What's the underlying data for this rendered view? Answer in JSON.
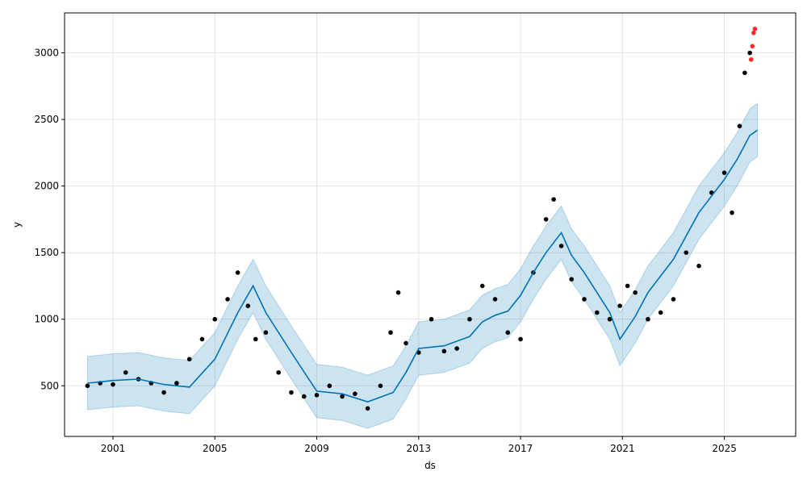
{
  "chart_data": {
    "type": "line",
    "title": "",
    "xlabel": "ds",
    "ylabel": "y",
    "xlim": [
      1999.1,
      2027.8
    ],
    "ylim": [
      120,
      3300
    ],
    "x_ticks": [
      2001,
      2005,
      2009,
      2013,
      2017,
      2021,
      2025
    ],
    "x_tick_labels": [
      "2001",
      "2005",
      "2009",
      "2013",
      "2017",
      "2021",
      "2025"
    ],
    "y_ticks": [
      500,
      1000,
      1500,
      2000,
      2500,
      3000
    ],
    "y_tick_labels": [
      "500",
      "1000",
      "1500",
      "2000",
      "2500",
      "3000"
    ],
    "grid": true,
    "colors": {
      "forecast": "#0072B2",
      "band": "#0072B2",
      "actual": "#000000",
      "outlier": "#FF0000"
    },
    "series": [
      {
        "role": "forecast",
        "x": [
          2000.0,
          2001.0,
          2002.0,
          2003.0,
          2004.0,
          2005.0,
          2005.9,
          2006.5,
          2007.0,
          2008.0,
          2009.0,
          2010.0,
          2011.0,
          2012.0,
          2012.5,
          2013.0,
          2014.0,
          2015.0,
          2015.5,
          2016.0,
          2016.5,
          2017.0,
          2017.5,
          2018.0,
          2018.6,
          2019.0,
          2019.5,
          2020.0,
          2020.5,
          2020.9,
          2021.5,
          2022.0,
          2023.0,
          2024.0,
          2025.0,
          2025.5,
          2026.0,
          2026.3
        ],
        "y": [
          520,
          540,
          550,
          510,
          490,
          700,
          1050,
          1250,
          1050,
          750,
          460,
          440,
          380,
          450,
          600,
          780,
          800,
          870,
          980,
          1030,
          1060,
          1180,
          1350,
          1500,
          1650,
          1480,
          1350,
          1200,
          1050,
          850,
          1020,
          1200,
          1450,
          1800,
          2050,
          2200,
          2380,
          2420
        ]
      },
      {
        "role": "uncertainty",
        "x": [
          2000.0,
          2001.0,
          2002.0,
          2003.0,
          2004.0,
          2005.0,
          2005.9,
          2006.5,
          2007.0,
          2008.0,
          2009.0,
          2010.0,
          2011.0,
          2012.0,
          2012.5,
          2013.0,
          2014.0,
          2015.0,
          2015.5,
          2016.0,
          2016.5,
          2017.0,
          2017.5,
          2018.0,
          2018.6,
          2019.0,
          2019.5,
          2020.0,
          2020.5,
          2020.9,
          2021.5,
          2022.0,
          2023.0,
          2024.0,
          2025.0,
          2025.5,
          2026.0,
          2026.3
        ],
        "y_upper": [
          720,
          740,
          750,
          710,
          690,
          900,
          1250,
          1450,
          1250,
          950,
          660,
          640,
          580,
          650,
          800,
          980,
          1000,
          1070,
          1180,
          1230,
          1260,
          1380,
          1550,
          1700,
          1850,
          1680,
          1550,
          1400,
          1250,
          1050,
          1220,
          1400,
          1650,
          2000,
          2250,
          2400,
          2580,
          2620
        ],
        "y_lower": [
          320,
          340,
          350,
          310,
          290,
          500,
          850,
          1050,
          850,
          550,
          260,
          240,
          180,
          250,
          400,
          580,
          600,
          670,
          780,
          830,
          860,
          980,
          1150,
          1300,
          1450,
          1280,
          1150,
          1000,
          850,
          650,
          820,
          1000,
          1250,
          1600,
          1850,
          2000,
          2180,
          2220
        ]
      },
      {
        "role": "actual",
        "x": [
          2000.0,
          2000.5,
          2001.0,
          2001.5,
          2002.0,
          2002.5,
          2003.0,
          2003.5,
          2004.0,
          2004.5,
          2005.0,
          2005.5,
          2005.9,
          2006.3,
          2006.6,
          2007.0,
          2007.5,
          2008.0,
          2008.5,
          2009.0,
          2009.5,
          2010.0,
          2010.5,
          2011.0,
          2011.5,
          2011.9,
          2012.2,
          2012.5,
          2013.0,
          2013.5,
          2014.0,
          2014.5,
          2015.0,
          2015.5,
          2016.0,
          2016.5,
          2017.0,
          2017.5,
          2018.0,
          2018.3,
          2018.6,
          2019.0,
          2019.5,
          2020.0,
          2020.5,
          2020.9,
          2021.2,
          2021.5,
          2022.0,
          2022.5,
          2023.0,
          2023.5,
          2024.0,
          2024.5,
          2025.0,
          2025.3,
          2025.6,
          2025.8,
          2026.0
        ],
        "y": [
          500,
          520,
          510,
          600,
          550,
          520,
          450,
          520,
          700,
          850,
          1000,
          1150,
          1350,
          1100,
          850,
          900,
          600,
          450,
          420,
          430,
          500,
          420,
          440,
          330,
          500,
          900,
          1200,
          820,
          750,
          1000,
          760,
          780,
          1000,
          1250,
          1150,
          900,
          850,
          1350,
          1750,
          1900,
          1550,
          1300,
          1150,
          1050,
          1000,
          1100,
          1250,
          1200,
          1000,
          1050,
          1150,
          1500,
          1400,
          1950,
          2100,
          1800,
          2450,
          2850,
          3000
        ]
      },
      {
        "role": "outlier",
        "x": [
          2026.05,
          2026.1,
          2026.15,
          2026.2
        ],
        "y": [
          2950,
          3050,
          3150,
          3180
        ]
      }
    ]
  }
}
